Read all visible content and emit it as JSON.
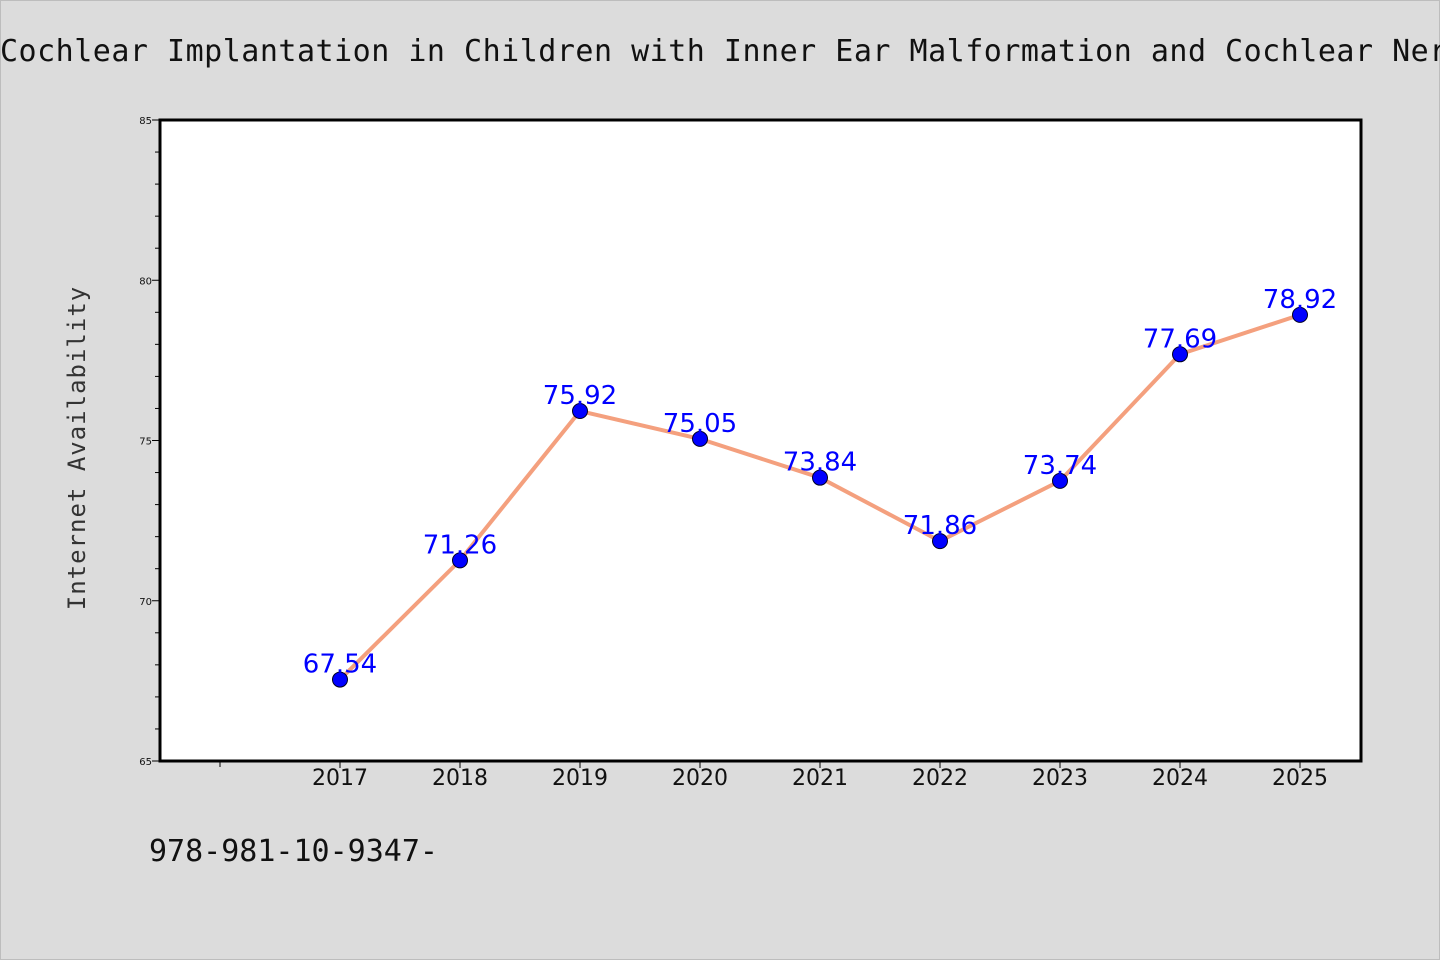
{
  "chart_data": {
    "type": "line",
    "title": "Cochlear Implantation in Children with Inner Ear Malformation and Cochlear Nerve",
    "xlabel": "",
    "ylabel": "Internet Availability",
    "ylim": [
      65,
      85
    ],
    "yticks": [
      65,
      70,
      75,
      80,
      85
    ],
    "x": [
      "2017",
      "2018",
      "2019",
      "2020",
      "2021",
      "2022",
      "2023",
      "2024",
      "2025"
    ],
    "series": [
      {
        "values": [
          67.54,
          71.26,
          75.92,
          75.05,
          73.84,
          71.86,
          73.74,
          77.69,
          78.92
        ]
      }
    ],
    "data_labels": [
      "67.54",
      "71.26",
      "75.92",
      "75.05",
      "73.84",
      "71.86",
      "73.74",
      "77.69",
      "78.92"
    ],
    "line_color": "#f4a07e",
    "marker_color": "#0000ff",
    "label_color": "#0000ff",
    "grid": false,
    "legend": "none"
  },
  "footer": {
    "isbn": "978-981-10-9347-"
  }
}
